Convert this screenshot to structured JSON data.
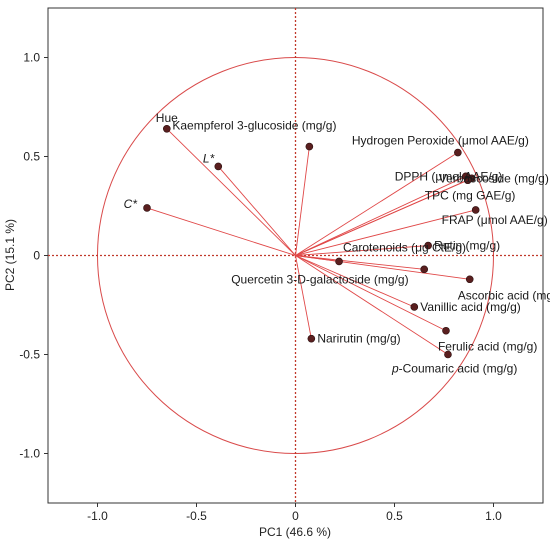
{
  "chart_data": {
    "type": "scatter",
    "subtype": "pca-loadings-biplot",
    "xlabel": "PC1  (46.6 %)",
    "ylabel": "PC2  (15.1 %)",
    "xlim": [
      -1.25,
      1.25
    ],
    "ylim": [
      -1.25,
      1.25
    ],
    "x_ticks": [
      -1.0,
      -0.5,
      0,
      0.5,
      1.0
    ],
    "y_ticks": [
      -1.0,
      -0.5,
      0,
      0.5,
      1.0
    ],
    "x_tick_labels": [
      "-1.0",
      "-0.5",
      "0",
      "0.5",
      "1.0"
    ],
    "y_tick_labels": [
      "-1.0",
      "-0.5",
      "0",
      "0.5",
      "1.0"
    ],
    "unit_circle": true,
    "grid": false,
    "colors": {
      "vector": "#e04848",
      "circle": "#d94a4a",
      "zero_line": "#c0392b",
      "point": "#5a1f1f"
    },
    "points": [
      {
        "label": "Hue",
        "x": -0.65,
        "y": 0.64
      },
      {
        "label": "Kaempferol 3-glucoside (mg/g)",
        "x": 0.07,
        "y": 0.55
      },
      {
        "label": "L*",
        "x": -0.39,
        "y": 0.45
      },
      {
        "label": "C*",
        "x": -0.75,
        "y": 0.24
      },
      {
        "label": "Hydrogen Peroxide (μmol AAE/g)",
        "x": 0.82,
        "y": 0.52
      },
      {
        "label": "Verbascoside (mg/g)",
        "x": 0.86,
        "y": 0.4
      },
      {
        "label": "DPPH (μmol AAE/g)",
        "x": 0.89,
        "y": 0.39
      },
      {
        "label": "TPC (mg GAE/g)",
        "x": 0.87,
        "y": 0.38
      },
      {
        "label": "FRAP (μmol AAE/g)",
        "x": 0.91,
        "y": 0.23
      },
      {
        "label": "Rutin (mg/g)",
        "x": 0.67,
        "y": 0.05
      },
      {
        "label": "Carotenoids (μg CtE/g)",
        "x": 0.22,
        "y": -0.03
      },
      {
        "label": "Quercetin 3-D-galactoside (mg/g)",
        "x": 0.65,
        "y": -0.07
      },
      {
        "label": "Ascorbic acid (mg/g)",
        "x": 0.88,
        "y": -0.12
      },
      {
        "label": "Vanillic acid (mg/g)",
        "x": 0.6,
        "y": -0.26
      },
      {
        "label": "Narirutin (mg/g)",
        "x": 0.08,
        "y": -0.42
      },
      {
        "label": "Ferulic acid (mg/g)",
        "x": 0.76,
        "y": -0.38
      },
      {
        "label": "p-Coumaric acid (mg/g)",
        "x": 0.77,
        "y": -0.5
      }
    ]
  }
}
